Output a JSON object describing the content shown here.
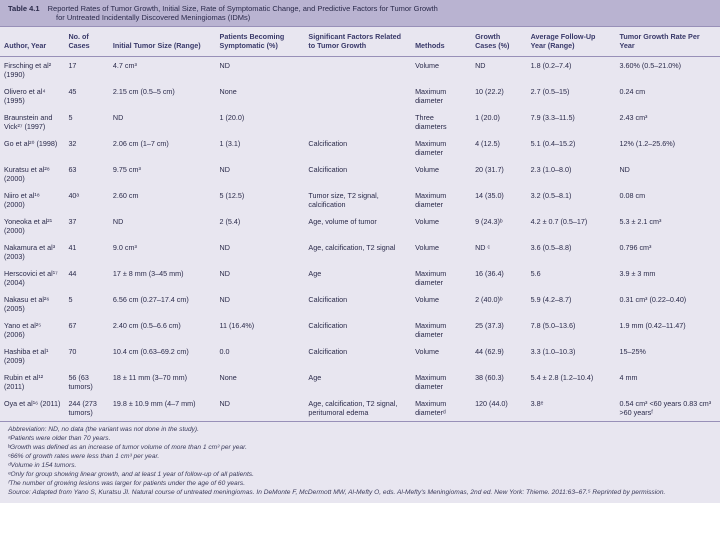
{
  "title": {
    "label": "Table 4.1",
    "line1": "Reported Rates of Tumor Growth, Initial Size, Rate of Symptomatic Change, and Predictive Factors for Tumor Growth",
    "line2": "for Untreated Incidentally Discovered Meningiomas (IDMs)"
  },
  "columns": [
    "Author, Year",
    "No. of Cases",
    "Initial Tumor Size (Range)",
    "Patients Becoming Symptomatic (%)",
    "Significant Factors Related to Tumor Growth",
    "Methods",
    "Growth Cases (%)",
    "Average Follow-Up Year (Range)",
    "Tumor Growth Rate Per Year"
  ],
  "rows": [
    {
      "author": "Firsching et al² (1990)",
      "cases": "17",
      "size": "4.7 cm³",
      "sympt": "ND",
      "factors": "",
      "methods": "Volume",
      "growth": "ND",
      "fu": "1.8 (0.2–7.4)",
      "rate": "3.60% (0.5–21.0%)"
    },
    {
      "author": "Olivero et al⁴ (1995)",
      "cases": "45",
      "size": "2.15 cm (0.5–5 cm)",
      "sympt": "None",
      "factors": "",
      "methods": "Maximum diameter",
      "growth": "10 (22.2)",
      "fu": "2.7 (0.5–15)",
      "rate": "0.24 cm"
    },
    {
      "author": "Braunstein and Vick²⁷ (1997)",
      "cases": "5",
      "size": "ND",
      "sympt": "1 (20.0)",
      "factors": "",
      "methods": "Three diameters",
      "growth": "1 (20.0)",
      "fu": "7.9 (3.3–11.5)",
      "rate": "2.43 cm³"
    },
    {
      "author": "Go et al²⁰ (1998)",
      "cases": "32",
      "size": "2.06 cm (1–7 cm)",
      "sympt": "1 (3.1)",
      "factors": "Calcification",
      "methods": "Maximum diameter",
      "growth": "4 (12.5)",
      "fu": "5.1 (0.4–15.2)",
      "rate": "12% (1.2–25.6%)"
    },
    {
      "author": "Kuratsu et al²⁸ (2000)",
      "cases": "63",
      "size": "9.75 cm³",
      "sympt": "ND",
      "factors": "Calcification",
      "methods": "Volume",
      "growth": "20 (31.7)",
      "fu": "2.3 (1.0–8.0)",
      "rate": "ND"
    },
    {
      "author": "Niiro et al¹⁸ (2000)",
      "cases": "40ᵃ",
      "size": "2.60 cm",
      "sympt": "5 (12.5)",
      "factors": "Tumor size, T2 signal, calcification",
      "methods": "Maximum diameter",
      "growth": "14 (35.0)",
      "fu": "3.2 (0.5–8.1)",
      "rate": "0.08 cm"
    },
    {
      "author": "Yoneoka et al²¹ (2000)",
      "cases": "37",
      "size": "ND",
      "sympt": "2 (5.4)",
      "factors": "Age, volume of tumor",
      "methods": "Volume",
      "growth": "9 (24.3)ᵇ",
      "fu": "4.2 ± 0.7 (0.5–17)",
      "rate": "5.3 ± 2.1 cm³"
    },
    {
      "author": "Nakamura et al³ (2003)",
      "cases": "41",
      "size": "9.0 cm³",
      "sympt": "ND",
      "factors": "Age, calcification, T2 signal",
      "methods": "Volume",
      "growth": "ND ᶜ",
      "fu": "3.6 (0.5–8.8)",
      "rate": "0.796 cm³"
    },
    {
      "author": "Herscovici et al¹⁷ (2004)",
      "cases": "44",
      "size": "17 ± 8 mm (3–45 mm)",
      "sympt": "ND",
      "factors": "Age",
      "methods": "Maximum diameter",
      "growth": "16 (36.4)",
      "fu": "5.6",
      "rate": "3.9 ± 3 mm"
    },
    {
      "author": "Nakasu et al²⁶ (2005)",
      "cases": "5",
      "size": "6.56 cm (0.27–17.4 cm)",
      "sympt": "ND",
      "factors": "Calcification",
      "methods": "Volume",
      "growth": "2 (40.0)ᵇ",
      "fu": "5.9 (4.2–8.7)",
      "rate": "0.31 cm³ (0.22–0.40)"
    },
    {
      "author": "Yano et al²⁵ (2006)",
      "cases": "67",
      "size": "2.40 cm (0.5–6.6 cm)",
      "sympt": "11 (16.4%)",
      "factors": "Calcification",
      "methods": "Maximum diameter",
      "growth": "25 (37.3)",
      "fu": "7.8 (5.0–13.6)",
      "rate": "1.9 mm (0.42–11.47)"
    },
    {
      "author": "Hashiba et al¹ (2009)",
      "cases": "70",
      "size": "10.4 cm (0.63–69.2 cm)",
      "sympt": "0.0",
      "factors": "Calcification",
      "methods": "Volume",
      "growth": "44 (62.9)",
      "fu": "3.3 (1.0–10.3)",
      "rate": "15–25%"
    },
    {
      "author": "Rubin et al¹² (2011)",
      "cases": "56 (63 tumors)",
      "size": "18 ± 11 mm (3–70 mm)",
      "sympt": "None",
      "factors": "Age",
      "methods": "Maximum diameter",
      "growth": "38 (60.3)",
      "fu": "5.4 ± 2.8 (1.2–10.4)",
      "rate": "4 mm"
    },
    {
      "author": "Oya et al¹⁶ (2011)",
      "cases": "244 (273 tumors)",
      "size": "19.8 ± 10.9 mm (4–7 mm)",
      "sympt": "ND",
      "factors": "Age, calcification, T2 signal, peritumoral edema",
      "methods": "Maximum diameterᵈ",
      "growth": "120 (44.0)",
      "fu": "3.8ᵉ",
      "rate": "0.54 cm³ <60 years 0.83 cm³ >60 yearsᶠ"
    }
  ],
  "footnotes": [
    "Abbreviation: ND, no data (the variant was not done in the study).",
    "ᵃPatients were older than 70 years.",
    "ᵇGrowth was defined as an increase of tumor volume of more than 1 cm³ per year.",
    "ᶜ66% of growth rates were less than 1 cm³ per year.",
    "ᵈVolume in 154 tumors.",
    "ᵉOnly for group showing linear growth, and at least 1 year of follow-up of all patients.",
    "ᶠThe number of growing lesions was larger for patients under the age of 60 years.",
    "Source: Adapted from Yano S, Kuratsu JI. Natural course of untreated meningiomas. In DeMonte F, McDermott MW, Al-Mefty O, eds. Al-Mefty's Meningiomas, 2nd ed. New York: Thieme. 2011:63–67.⁵ Reprinted by permission."
  ],
  "style": {
    "header_bg": "#b9b3d1",
    "body_bg": "#e8e6f0",
    "border": "#9890b8",
    "text": "#2a2a4a"
  }
}
